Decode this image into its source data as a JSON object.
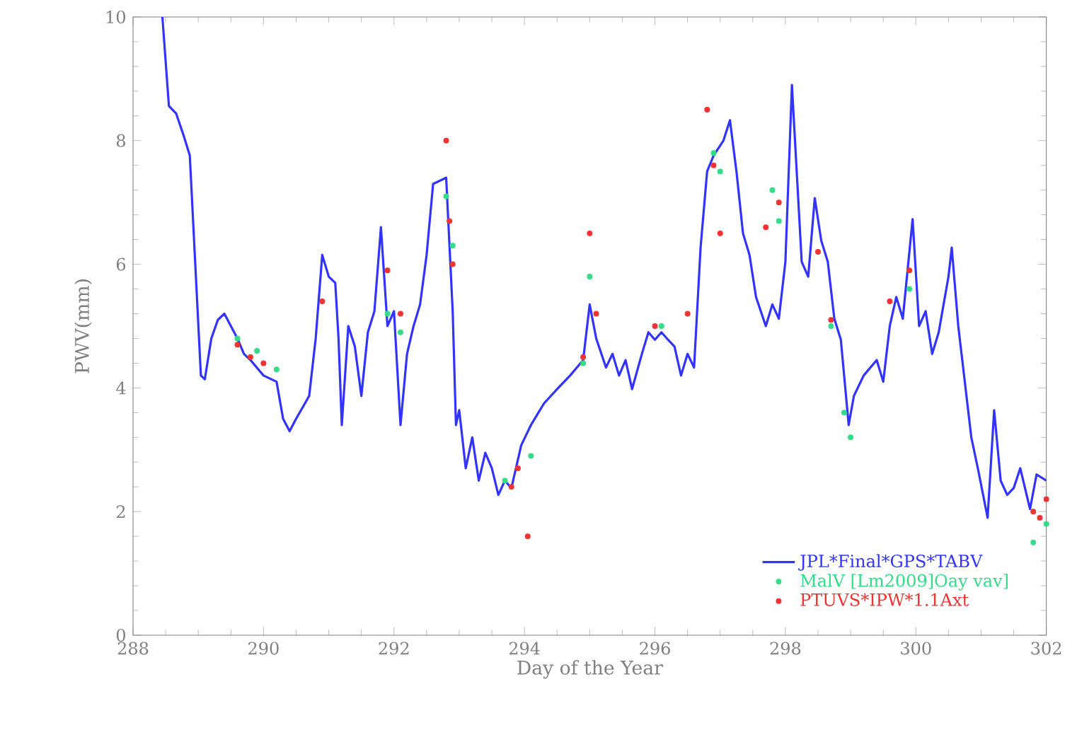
{
  "chart_data": {
    "type": "line",
    "xlabel": "Day of the Year",
    "ylabel": "PWV(mm)",
    "xlim": [
      288,
      302
    ],
    "xticks": [
      288,
      290,
      292,
      294,
      296,
      298,
      300,
      302
    ],
    "ylim": [
      0,
      10
    ],
    "yticks": [
      0,
      2,
      4,
      6,
      8,
      10
    ],
    "grid": false,
    "legend": "bottom right",
    "series": [
      {
        "name": "JPL*Final*GPS*TABV",
        "color": "#3333ff",
        "marker": "none",
        "x": [
          288.45,
          288.55,
          288.66,
          288.77,
          288.87,
          289.04,
          289.1,
          289.2,
          289.3,
          289.4,
          289.5,
          289.6,
          289.7,
          289.8,
          290.0,
          290.2,
          290.3,
          290.4,
          290.5,
          290.7,
          290.8,
          290.9,
          291.0,
          291.1,
          291.15,
          291.2,
          291.3,
          291.4,
          291.5,
          291.6,
          291.7,
          291.8,
          291.9,
          292.0,
          292.1,
          292.2,
          292.3,
          292.4,
          292.5,
          292.6,
          292.8,
          292.9,
          292.95,
          293.0,
          293.1,
          293.2,
          293.3,
          293.4,
          293.5,
          293.6,
          293.7,
          293.8,
          293.95,
          294.1,
          294.3,
          294.5,
          294.7,
          294.9,
          295.0,
          295.1,
          295.25,
          295.35,
          295.45,
          295.55,
          295.65,
          295.8,
          295.9,
          296.0,
          296.1,
          296.2,
          296.3,
          296.4,
          296.5,
          296.6,
          296.7,
          296.8,
          296.9,
          297.05,
          297.15,
          297.25,
          297.35,
          297.45,
          297.55,
          297.7,
          297.8,
          297.9,
          298.0,
          298.1,
          298.25,
          298.35,
          298.45,
          298.55,
          298.65,
          298.75,
          298.85,
          298.97,
          299.05,
          299.2,
          299.4,
          299.5,
          299.6,
          299.7,
          299.8,
          299.95,
          300.05,
          300.15,
          300.25,
          300.35,
          300.5,
          300.55,
          300.65,
          300.85,
          300.95,
          301.1,
          301.2,
          301.3,
          301.4,
          301.5,
          301.6,
          301.75,
          301.85,
          302.0
        ],
        "values": [
          10,
          8.56,
          8.44,
          8.1,
          7.76,
          4.2,
          4.14,
          4.8,
          5.1,
          5.2,
          5.0,
          4.8,
          4.55,
          4.45,
          4.2,
          4.1,
          3.5,
          3.3,
          3.5,
          3.87,
          4.8,
          6.15,
          5.8,
          5.7,
          4.8,
          3.4,
          5.0,
          4.67,
          3.87,
          4.9,
          5.24,
          6.6,
          5.0,
          5.24,
          3.4,
          4.55,
          5.0,
          5.35,
          6.15,
          7.3,
          7.4,
          5.24,
          3.4,
          3.64,
          2.7,
          3.2,
          2.5,
          2.95,
          2.7,
          2.27,
          2.5,
          2.38,
          3.07,
          3.4,
          3.75,
          3.98,
          4.2,
          4.45,
          5.35,
          4.8,
          4.33,
          4.55,
          4.2,
          4.45,
          3.98,
          4.55,
          4.9,
          4.78,
          4.9,
          4.78,
          4.67,
          4.2,
          4.55,
          4.33,
          6.27,
          7.5,
          7.76,
          8.0,
          8.33,
          7.5,
          6.5,
          6.15,
          5.47,
          5.0,
          5.35,
          5.12,
          6.04,
          8.9,
          6.04,
          5.8,
          7.07,
          6.38,
          6.04,
          5.12,
          4.78,
          3.4,
          3.87,
          4.2,
          4.45,
          4.1,
          5.0,
          5.47,
          5.12,
          6.73,
          5.0,
          5.24,
          4.55,
          4.9,
          5.8,
          6.27,
          5.0,
          3.2,
          2.7,
          1.9,
          3.64,
          2.5,
          2.27,
          2.38,
          2.7,
          2.04,
          2.6,
          2.5
        ]
      },
      {
        "name": "MalV [Lm2009]Oay vav]",
        "type": "scatter",
        "color": "#33dd88",
        "marker": "circle",
        "x": [
          289.6,
          289.9,
          290.2,
          291.9,
          292.1,
          292.8,
          292.9,
          293.7,
          294.1,
          294.9,
          295.0,
          296.1,
          296.9,
          297.0,
          297.8,
          297.9,
          298.7,
          298.9,
          299.0,
          299.9,
          301.8,
          302.0
        ],
        "values": [
          4.8,
          4.6,
          4.3,
          5.2,
          4.9,
          7.1,
          6.3,
          2.5,
          2.9,
          4.4,
          5.8,
          5.0,
          7.8,
          7.5,
          7.2,
          6.7,
          5.0,
          3.6,
          3.2,
          5.6,
          1.5,
          1.8
        ]
      },
      {
        "name": "PTUVS*IPW*1.1Axt",
        "type": "scatter",
        "color": "#ee3333",
        "marker": "circle",
        "x": [
          289.6,
          289.8,
          290.0,
          290.9,
          291.9,
          292.1,
          292.8,
          292.85,
          292.9,
          293.8,
          293.9,
          294.05,
          294.9,
          295.0,
          295.1,
          296.0,
          296.5,
          296.8,
          296.9,
          297.0,
          297.7,
          297.9,
          298.5,
          298.7,
          299.6,
          299.9,
          301.8,
          301.9,
          302.0
        ],
        "values": [
          4.7,
          4.5,
          4.4,
          5.4,
          5.9,
          5.2,
          8.0,
          6.7,
          6.0,
          2.4,
          2.7,
          1.6,
          4.5,
          6.5,
          5.2,
          5.0,
          5.2,
          8.5,
          7.6,
          6.5,
          6.6,
          7.0,
          6.2,
          5.1,
          5.4,
          5.9,
          2.0,
          1.9,
          2.2
        ]
      }
    ]
  }
}
